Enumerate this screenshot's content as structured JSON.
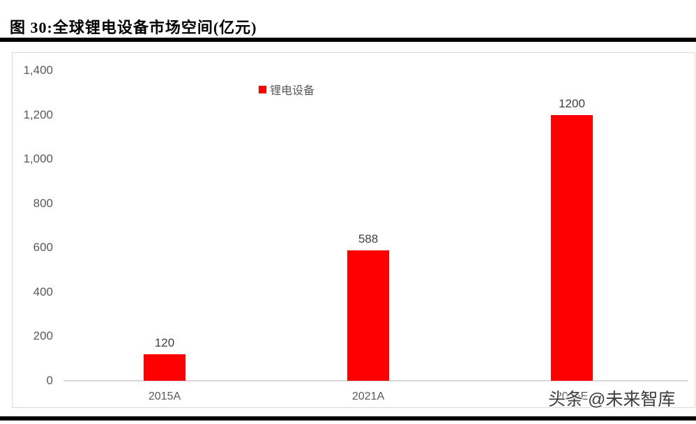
{
  "page": {
    "title": "图 30:全球锂电设备市场空间(亿元)",
    "watermark": "头条 @未来智库"
  },
  "chart_data": {
    "type": "bar",
    "title": "全球锂电设备市场空间(亿元)",
    "categories": [
      "2015A",
      "2021A",
      "2025E"
    ],
    "series": [
      {
        "name": "锂电设备",
        "values": [
          120,
          588,
          1200
        ]
      }
    ],
    "data_labels": [
      "120",
      "588",
      "1200"
    ],
    "ylim": [
      0,
      1400
    ],
    "ytick_labels": [
      "1,400",
      "1,200",
      "1,000",
      "800",
      "600",
      "400",
      "200",
      "0"
    ],
    "grid": false,
    "legend_position": "top-center",
    "colors": {
      "bar": "#ff0000",
      "axis_line": "#d9d9d9",
      "chart_border": "#d9d9d9",
      "tick_text": "#595959",
      "data_label_text": "#404040",
      "title_text": "#000000"
    }
  }
}
